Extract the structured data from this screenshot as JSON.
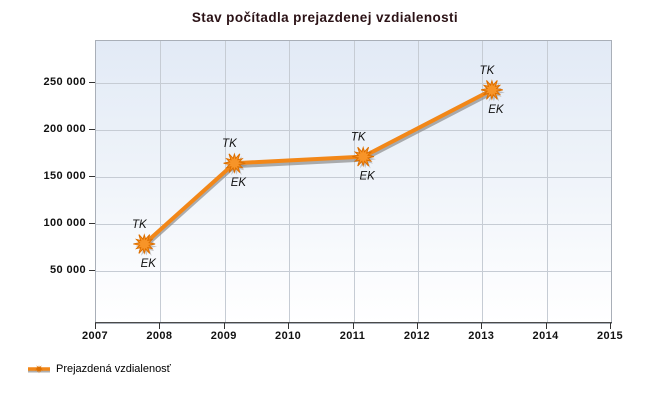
{
  "title": "Stav počítadla prejazdenej vzdialenosti",
  "legend": {
    "label": "Prejazdená vzdialenosť"
  },
  "colors": {
    "title_text": "#2B1216",
    "plot_bg_top": "#E2EAF6",
    "plot_bg_bottom": "#FFFFFF",
    "grid": "#C6CCD4",
    "plot_border": "#A9AFB8",
    "axis": "#4A4A4A",
    "line": "#F28718",
    "line_shadow": "#8C8C8C",
    "marker_fill": "#F79428",
    "marker_stroke": "#DD6F00",
    "marker_shadow": "#808080",
    "tick_text": "#111111",
    "point_label_text": "#111111"
  },
  "chart_data": {
    "type": "line",
    "title": "Stav počítadla prejazdenej vzdialenosti",
    "xlabel": "",
    "ylabel": "",
    "grid": true,
    "legend_position": "bottom-left",
    "x_range": [
      2007,
      2015
    ],
    "y_range": [
      -5000,
      295000
    ],
    "x_ticks": [
      {
        "value": 2007,
        "label": "2007"
      },
      {
        "value": 2008,
        "label": "2008"
      },
      {
        "value": 2009,
        "label": "2009"
      },
      {
        "value": 2010,
        "label": "2010"
      },
      {
        "value": 2011,
        "label": "2011"
      },
      {
        "value": 2012,
        "label": "2012"
      },
      {
        "value": 2013,
        "label": "2013"
      },
      {
        "value": 2014,
        "label": "2014"
      },
      {
        "value": 2015,
        "label": "2015"
      }
    ],
    "y_ticks": [
      {
        "value": 50000,
        "label": "50 000"
      },
      {
        "value": 100000,
        "label": "100 000"
      },
      {
        "value": 150000,
        "label": "150 000"
      },
      {
        "value": 200000,
        "label": "200 000"
      },
      {
        "value": 250000,
        "label": "250 000"
      }
    ],
    "series": [
      {
        "name": "Prejazdená vzdialenosť",
        "points": [
          {
            "x": 2007.75,
            "y": 79000,
            "label_above": "TK",
            "label_below": "EK"
          },
          {
            "x": 2009.15,
            "y": 165000,
            "label_above": "TK",
            "label_below": "EK"
          },
          {
            "x": 2011.15,
            "y": 172000,
            "label_above": "TK",
            "label_below": "EK"
          },
          {
            "x": 2013.15,
            "y": 243000,
            "label_above": "TK",
            "label_below": "EK"
          }
        ]
      }
    ]
  }
}
